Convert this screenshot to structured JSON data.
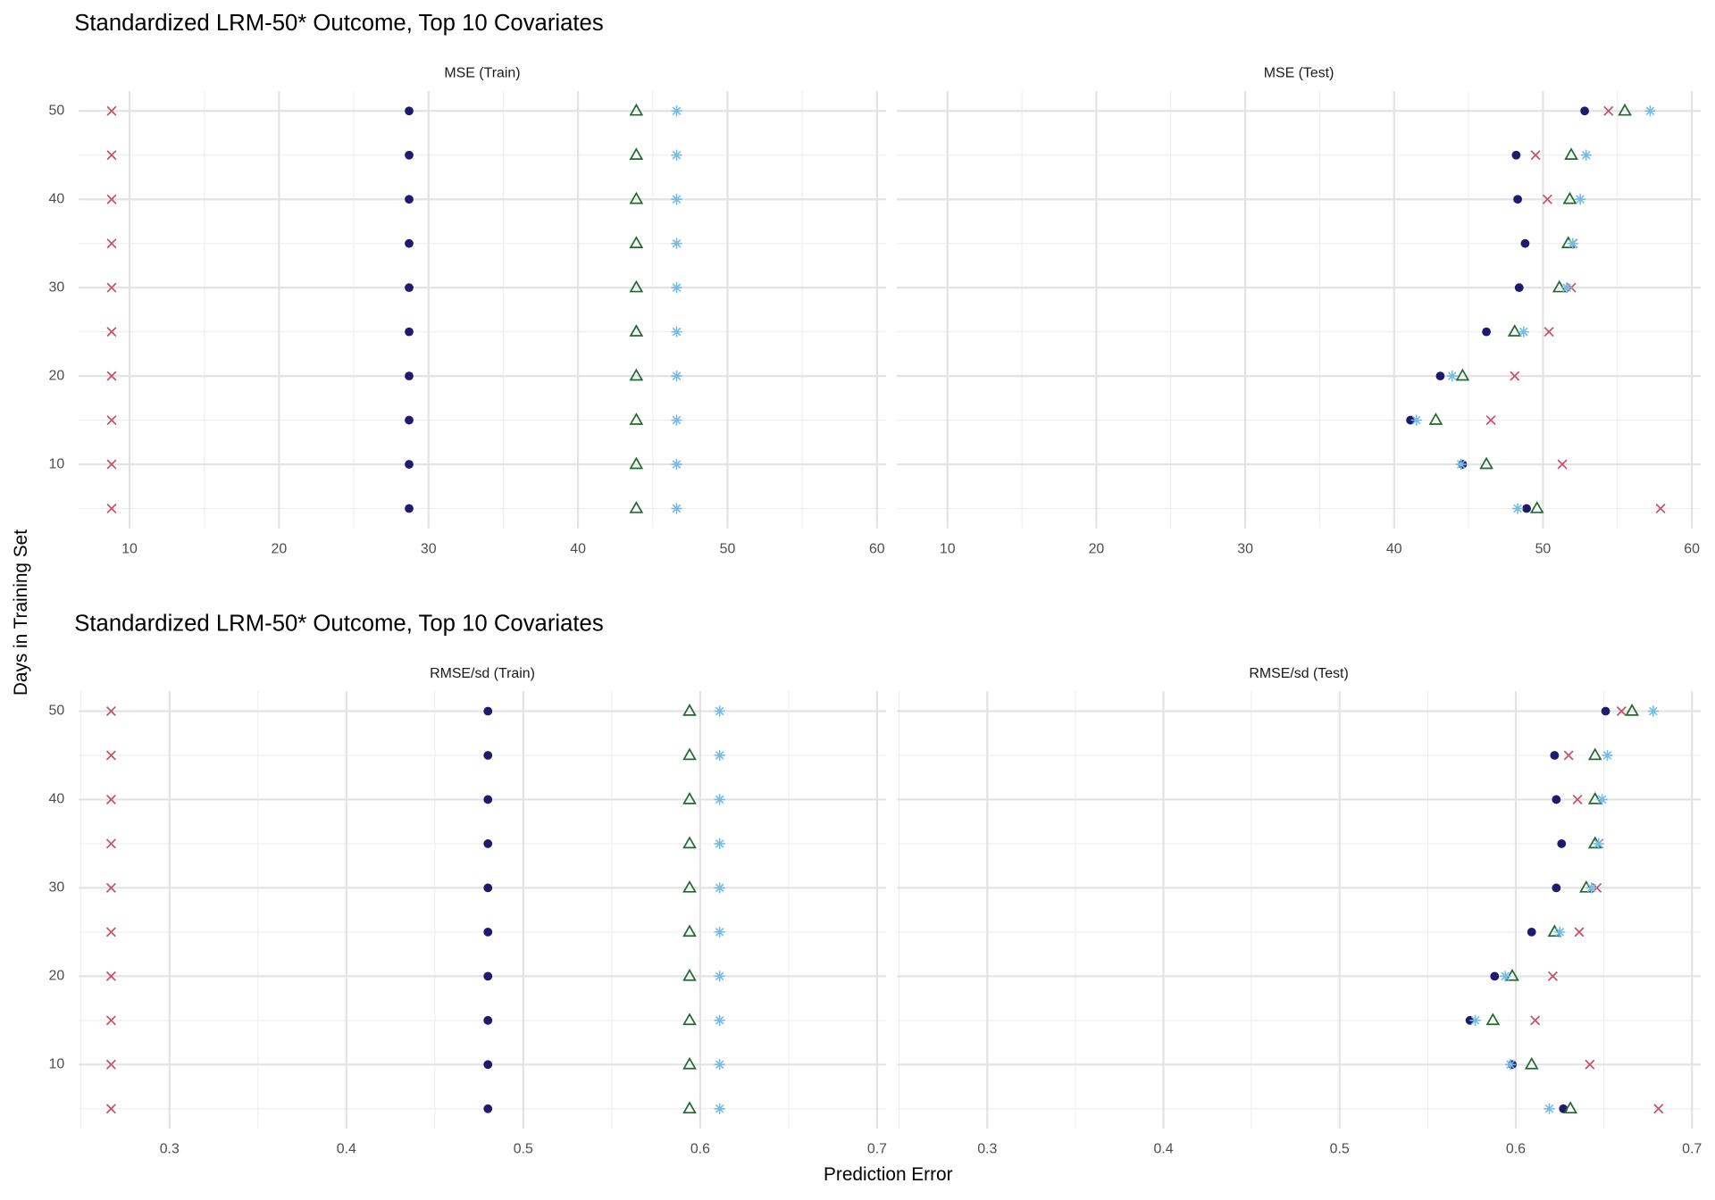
{
  "chart_data": [
    {
      "type": "scatter",
      "title": "Standardized LRM-50* Outcome, Top 10 Covariates",
      "y": [
        5,
        10,
        15,
        20,
        25,
        30,
        35,
        40,
        45,
        50
      ],
      "ylim": [
        2.75,
        52.25
      ],
      "yticks": [
        10,
        20,
        30,
        40,
        50
      ],
      "xlim": [
        6.6,
        60.6
      ],
      "xticks": [
        10,
        20,
        30,
        40,
        50,
        60
      ],
      "grid": true,
      "facets": [
        {
          "label": "MSE (Train)",
          "series": [
            {
              "color": "#1f1a6e",
              "marker": "circle",
              "values": [
                28.7,
                28.7,
                28.7,
                28.7,
                28.7,
                28.7,
                28.7,
                28.7,
                28.7,
                28.7
              ]
            },
            {
              "color": "#c8506a",
              "marker": "x",
              "values": [
                8.8,
                8.8,
                8.8,
                8.8,
                8.8,
                8.8,
                8.8,
                8.8,
                8.8,
                8.8
              ]
            },
            {
              "color": "#1f6b2c",
              "marker": "triangle",
              "values": [
                43.9,
                43.9,
                43.9,
                43.9,
                43.9,
                43.9,
                43.9,
                43.9,
                43.9,
                43.9
              ]
            },
            {
              "color": "#74bce6",
              "marker": "asterisk",
              "values": [
                46.6,
                46.6,
                46.6,
                46.6,
                46.6,
                46.6,
                46.6,
                46.6,
                46.6,
                46.6
              ]
            }
          ]
        },
        {
          "label": "MSE (Test)",
          "series": [
            {
              "color": "#1f1a6e",
              "marker": "circle",
              "values": [
                48.9,
                44.6,
                41.1,
                43.1,
                46.2,
                48.4,
                48.8,
                48.3,
                48.2,
                52.8
              ]
            },
            {
              "color": "#c8506a",
              "marker": "x",
              "values": [
                57.9,
                51.3,
                46.5,
                48.1,
                50.4,
                51.9,
                52.0,
                50.3,
                49.5,
                54.4
              ]
            },
            {
              "color": "#1f6b2c",
              "marker": "triangle",
              "values": [
                49.6,
                46.2,
                42.8,
                44.6,
                48.1,
                51.1,
                51.7,
                51.8,
                51.9,
                55.5
              ]
            },
            {
              "color": "#74bce6",
              "marker": "asterisk",
              "values": [
                48.3,
                44.5,
                41.5,
                43.9,
                48.7,
                51.6,
                52.0,
                52.5,
                52.9,
                57.2
              ]
            }
          ]
        }
      ]
    },
    {
      "type": "scatter",
      "title": "Standardized LRM-50* Outcome, Top 10 Covariates",
      "y": [
        5,
        10,
        15,
        20,
        25,
        30,
        35,
        40,
        45,
        50
      ],
      "ylim": [
        2.75,
        52.25
      ],
      "yticks": [
        10,
        20,
        30,
        40,
        50
      ],
      "xlim": [
        0.2487,
        0.705
      ],
      "xticks": [
        0.3,
        0.4,
        0.5,
        0.6,
        0.7
      ],
      "grid": true,
      "facets": [
        {
          "label": "RMSE/sd (Train)",
          "series": [
            {
              "color": "#1f1a6e",
              "marker": "circle",
              "values": [
                0.48,
                0.48,
                0.48,
                0.48,
                0.48,
                0.48,
                0.48,
                0.48,
                0.48,
                0.48
              ]
            },
            {
              "color": "#c8506a",
              "marker": "x",
              "values": [
                0.267,
                0.267,
                0.267,
                0.267,
                0.267,
                0.267,
                0.267,
                0.267,
                0.267,
                0.267
              ]
            },
            {
              "color": "#1f6b2c",
              "marker": "triangle",
              "values": [
                0.594,
                0.594,
                0.594,
                0.594,
                0.594,
                0.594,
                0.594,
                0.594,
                0.594,
                0.594
              ]
            },
            {
              "color": "#74bce6",
              "marker": "asterisk",
              "values": [
                0.611,
                0.611,
                0.611,
                0.611,
                0.611,
                0.611,
                0.611,
                0.611,
                0.611,
                0.611
              ]
            }
          ]
        },
        {
          "label": "RMSE/sd (Test)",
          "series": [
            {
              "color": "#1f1a6e",
              "marker": "circle",
              "values": [
                0.627,
                0.598,
                0.574,
                0.588,
                0.609,
                0.623,
                0.626,
                0.623,
                0.622,
                0.651
              ]
            },
            {
              "color": "#c8506a",
              "marker": "x",
              "values": [
                0.681,
                0.642,
                0.611,
                0.621,
                0.636,
                0.646,
                0.647,
                0.635,
                0.63,
                0.66
              ]
            },
            {
              "color": "#1f6b2c",
              "marker": "triangle",
              "values": [
                0.631,
                0.609,
                0.587,
                0.598,
                0.622,
                0.64,
                0.645,
                0.645,
                0.645,
                0.666
              ]
            },
            {
              "color": "#74bce6",
              "marker": "asterisk",
              "values": [
                0.619,
                0.597,
                0.577,
                0.594,
                0.625,
                0.643,
                0.647,
                0.649,
                0.652,
                0.678
              ]
            }
          ]
        }
      ]
    }
  ],
  "xlabel": "Prediction Error",
  "ylabel": "Days in Training Set"
}
